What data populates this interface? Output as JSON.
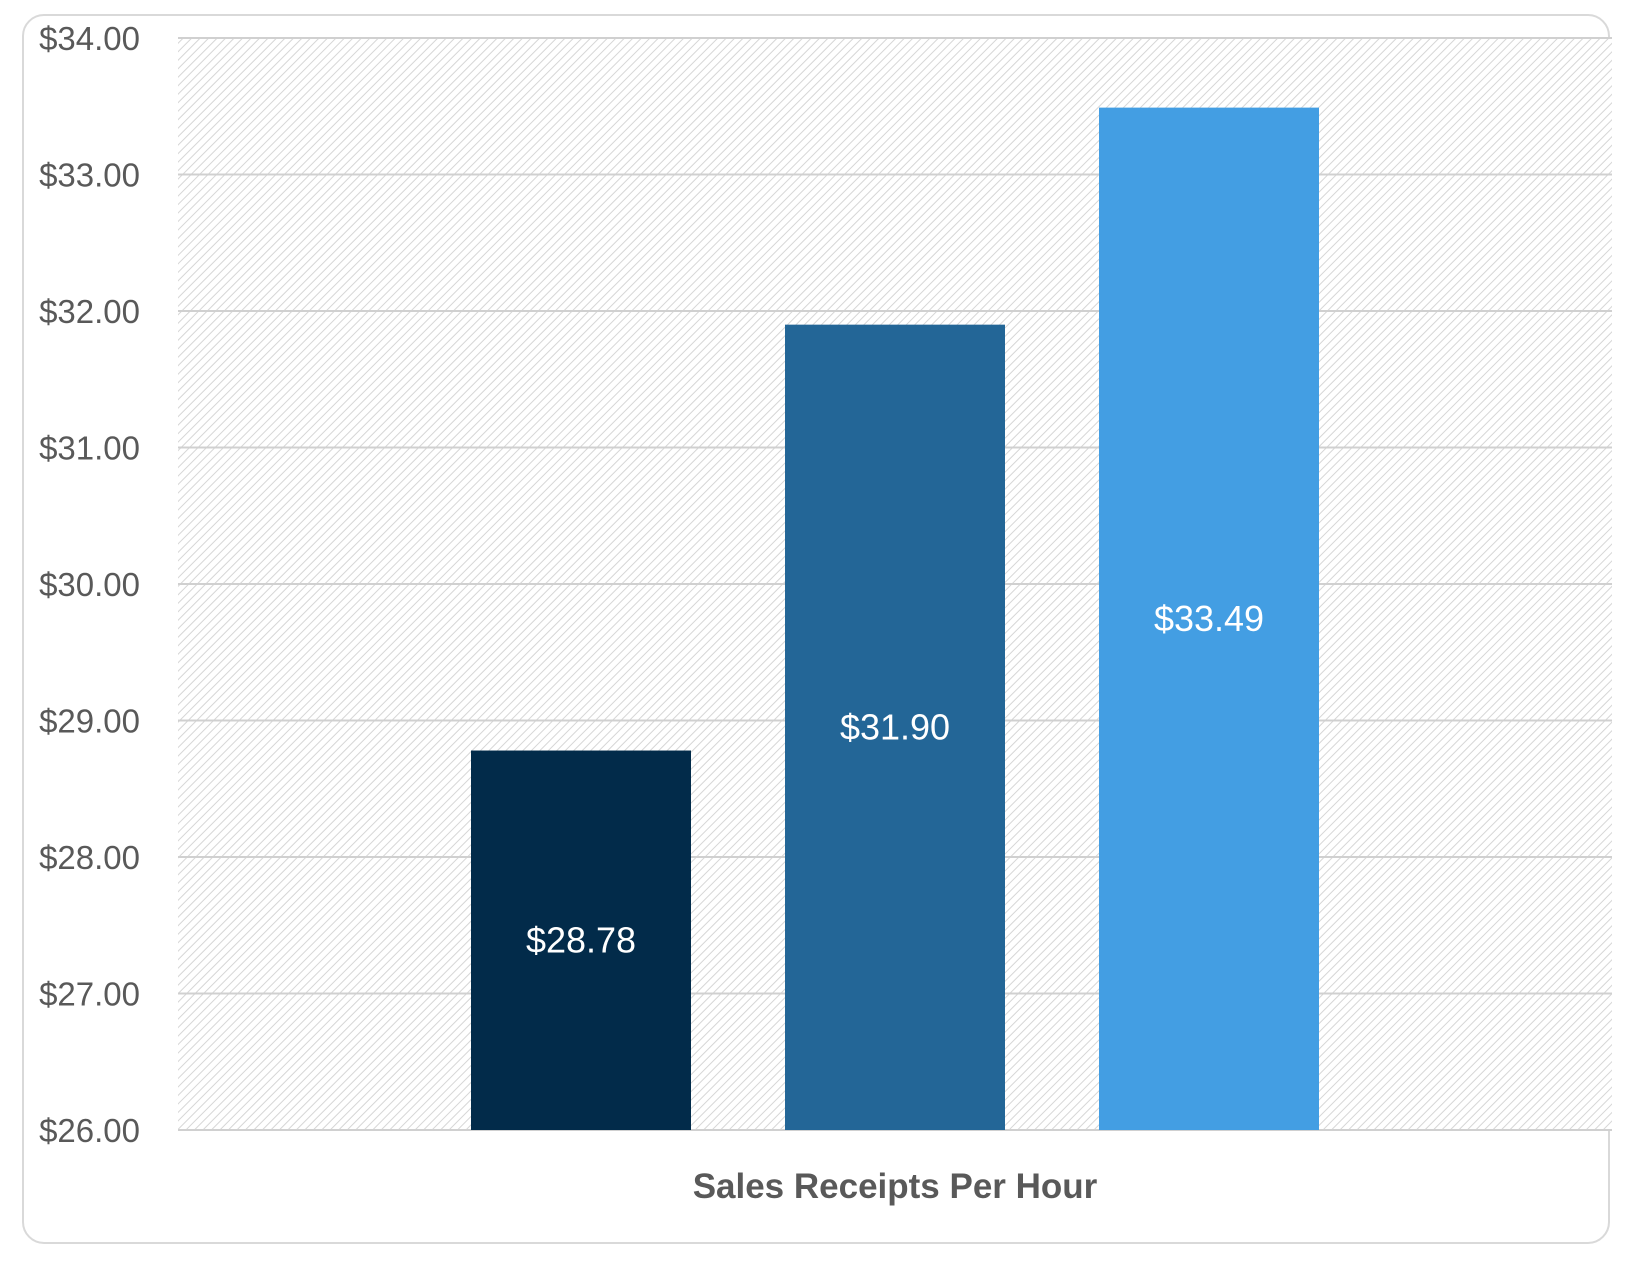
{
  "chart_data": {
    "type": "bar",
    "title": "",
    "xlabel": "Sales Receipts Per Hour",
    "ylabel": "",
    "ylim": [
      26,
      34
    ],
    "y_ticks": [
      "$26.00",
      "$27.00",
      "$28.00",
      "$29.00",
      "$30.00",
      "$31.00",
      "$32.00",
      "$33.00",
      "$34.00"
    ],
    "y_tick_values": [
      26,
      27,
      28,
      29,
      30,
      31,
      32,
      33,
      34
    ],
    "grid": true,
    "legend": "none",
    "values": [
      28.78,
      31.9,
      33.49
    ],
    "data_labels": [
      "$28.78",
      "$31.90",
      "$33.49"
    ],
    "colors": [
      "#022b4a",
      "#236697",
      "#439ee3"
    ]
  }
}
